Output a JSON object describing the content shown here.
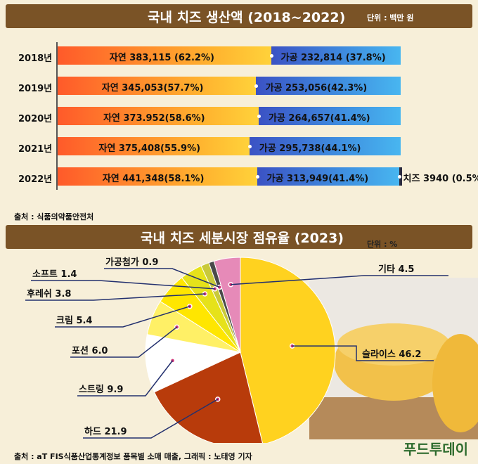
{
  "top": {
    "title": "국내 치즈 생산액 (2018~2022)",
    "unit": "단위 : 백만 원",
    "source": "출처 : 식품의약품안전처"
  },
  "bottom": {
    "title": "국내 치즈 세분시장 점유율 (2023)",
    "unit": "단위 : %",
    "source": "출처 : aT FIS식품산업통계정보 품목별 소매 매출, 그래픽 : 노태영 기자"
  },
  "logo": "푸드투데이",
  "colors": {
    "banner": "#7a5326",
    "natural": "#ff6a2b",
    "processed": "#3d5fd0",
    "cheese": "#2b2b3f"
  },
  "chart_data": [
    {
      "type": "bar",
      "stacked": true,
      "title": "국내 치즈 생산액 (2018~2022)",
      "unit": "백만 원",
      "categories": [
        "2018년",
        "2019년",
        "2020년",
        "2021년",
        "2022년"
      ],
      "series": [
        {
          "name": "자연",
          "values": [
            383115,
            345053,
            373952,
            375408,
            441348
          ],
          "percent": [
            62.2,
            57.7,
            58.6,
            55.9,
            58.1
          ]
        },
        {
          "name": "가공",
          "values": [
            232814,
            253056,
            264657,
            295738,
            313949
          ],
          "percent": [
            37.8,
            42.3,
            41.4,
            44.1,
            41.4
          ]
        },
        {
          "name": "치즈",
          "values": [
            null,
            null,
            null,
            null,
            3940
          ],
          "percent": [
            null,
            null,
            null,
            null,
            0.5
          ]
        }
      ],
      "labels": [
        [
          "자연 383,115 (62.2%)",
          "가공 232,814 (37.8%)",
          ""
        ],
        [
          "자연 345,053(57.7%)",
          "가공 253,056(42.3%)",
          ""
        ],
        [
          "자연 373.952(58.6%)",
          "가공 264,657(41.4%)",
          ""
        ],
        [
          "자연 375,408(55.9%)",
          "가공 295,738(44.1%)",
          ""
        ],
        [
          "자연 441,348(58.1%)",
          "가공 313,949(41.4%)",
          "치즈 3940 (0.5%)"
        ]
      ]
    },
    {
      "type": "pie",
      "title": "국내 치즈 세분시장 점유율 (2023)",
      "unit": "%",
      "slices": [
        {
          "name": "슬라이스",
          "value": 46.2,
          "label": "슬라이스 46.2",
          "color": "#ffd21f"
        },
        {
          "name": "하드",
          "value": 21.9,
          "label": "하드 21.9",
          "color": "#b83b0b"
        },
        {
          "name": "스트링",
          "value": 9.9,
          "label": "스트링 9.9",
          "color": "#ffffff"
        },
        {
          "name": "포션",
          "value": 6.0,
          "label": "포션 6.0",
          "color": "#fff066"
        },
        {
          "name": "크림",
          "value": 5.4,
          "label": "크림 5.4",
          "color": "#ffe600"
        },
        {
          "name": "후레쉬",
          "value": 3.8,
          "label": "후레쉬 3.8",
          "color": "#e6e21a"
        },
        {
          "name": "소프트",
          "value": 1.4,
          "label": "소프트 1.4",
          "color": "#c9c93a"
        },
        {
          "name": "가공첨가",
          "value": 0.9,
          "label": "가공첨가 0.9",
          "color": "#4a4a4a"
        },
        {
          "name": "기타",
          "value": 4.5,
          "label": "기타 4.5",
          "color": "#e68ab8"
        }
      ]
    }
  ]
}
